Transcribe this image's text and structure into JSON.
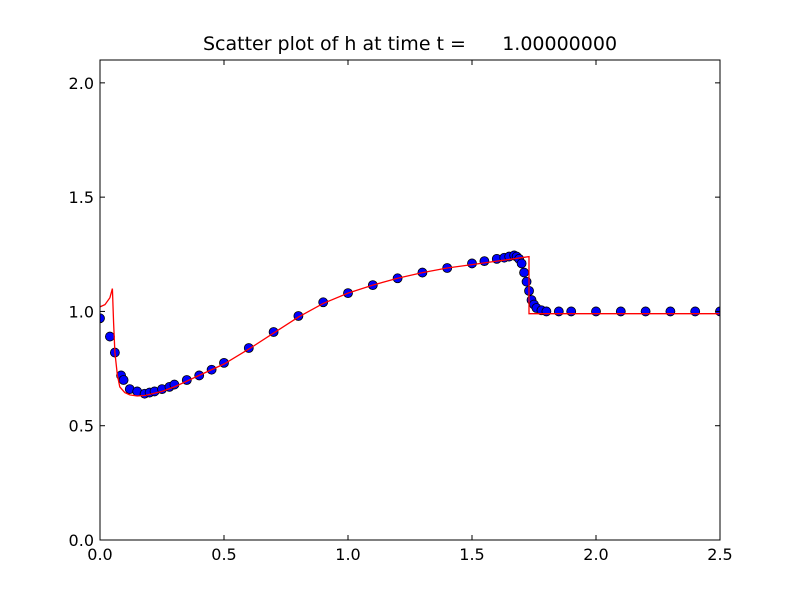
{
  "chart_data": {
    "type": "scatter",
    "title": "Scatter plot of h at time t =      1.00000000",
    "xlabel": "",
    "ylabel": "",
    "xlim": [
      0.0,
      2.5
    ],
    "ylim": [
      0.0,
      2.1
    ],
    "grid": false,
    "x_ticks": [
      "0.0",
      "0.5",
      "1.0",
      "1.5",
      "2.0",
      "2.5"
    ],
    "y_ticks": [
      "0.0",
      "0.5",
      "1.0",
      "1.5",
      "2.0"
    ],
    "colors": {
      "points_fill": "#0000ff",
      "points_edge": "#000000",
      "line": "#ff0000"
    },
    "series": [
      {
        "kind": "scatter",
        "x": [
          0.0,
          0.04,
          0.06,
          0.085,
          0.095,
          0.12,
          0.15,
          0.18,
          0.2,
          0.22,
          0.25,
          0.28,
          0.3,
          0.35,
          0.4,
          0.45,
          0.5,
          0.6,
          0.7,
          0.8,
          0.9,
          1.0,
          1.1,
          1.2,
          1.3,
          1.4,
          1.5,
          1.55,
          1.6,
          1.63,
          1.65,
          1.67,
          1.68,
          1.69,
          1.7,
          1.71,
          1.72,
          1.73,
          1.74,
          1.75,
          1.76,
          1.78,
          1.8,
          1.85,
          1.9,
          2.0,
          2.1,
          2.2,
          2.3,
          2.4,
          2.5
        ],
        "y": [
          0.97,
          0.89,
          0.82,
          0.72,
          0.7,
          0.66,
          0.65,
          0.64,
          0.645,
          0.65,
          0.66,
          0.67,
          0.68,
          0.7,
          0.72,
          0.745,
          0.775,
          0.84,
          0.91,
          0.98,
          1.04,
          1.08,
          1.115,
          1.145,
          1.17,
          1.19,
          1.21,
          1.22,
          1.23,
          1.235,
          1.24,
          1.245,
          1.24,
          1.23,
          1.21,
          1.17,
          1.13,
          1.09,
          1.05,
          1.03,
          1.015,
          1.005,
          1.0,
          1.0,
          1.0,
          1.0,
          1.0,
          1.0,
          1.0,
          1.0,
          1.0
        ]
      },
      {
        "kind": "line",
        "x": [
          0.0,
          0.02,
          0.04,
          0.05,
          0.055,
          0.06,
          0.07,
          0.08,
          0.1,
          0.12,
          0.15,
          0.18,
          0.2,
          0.25,
          0.3,
          0.4,
          0.5,
          0.6,
          0.7,
          0.8,
          0.9,
          1.0,
          1.1,
          1.2,
          1.3,
          1.4,
          1.5,
          1.6,
          1.7,
          1.73,
          1.73,
          1.75,
          2.0,
          2.5
        ],
        "y": [
          1.02,
          1.03,
          1.06,
          1.1,
          0.95,
          0.82,
          0.72,
          0.67,
          0.645,
          0.635,
          0.63,
          0.632,
          0.637,
          0.65,
          0.67,
          0.72,
          0.77,
          0.835,
          0.905,
          0.975,
          1.035,
          1.08,
          1.115,
          1.145,
          1.17,
          1.19,
          1.205,
          1.22,
          1.235,
          1.24,
          0.99,
          0.99,
          0.99,
          0.99
        ]
      }
    ]
  }
}
